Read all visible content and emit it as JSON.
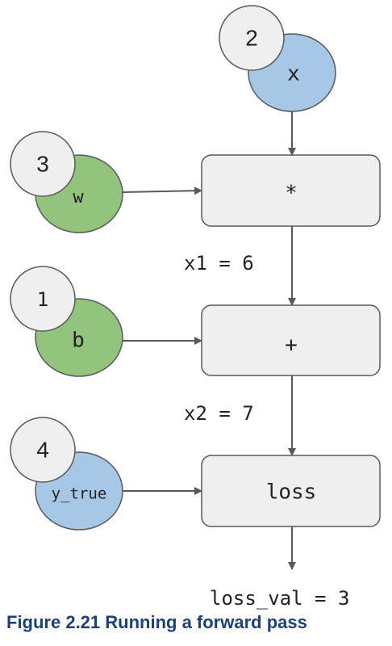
{
  "nodes": {
    "x": {
      "label": "x",
      "value": "2",
      "color": "#a7c7e7"
    },
    "w": {
      "label": "w",
      "value": "3",
      "color": "#93c47d"
    },
    "b": {
      "label": "b",
      "value": "1",
      "color": "#93c47d"
    },
    "y_true": {
      "label": "y_true",
      "value": "4",
      "color": "#a7c7e7"
    }
  },
  "ops": {
    "mul": "*",
    "add": "+",
    "loss": "loss"
  },
  "edges": {
    "x1": "x1 = 6",
    "x2": "x2 = 7",
    "output": "loss_val = 3"
  },
  "caption": "Figure 2.21 Running a forward pass",
  "colors": {
    "box_fill": "#efefef",
    "stroke": "#595959",
    "value_badge": "#efefef",
    "caption": "#1f3f7a"
  }
}
